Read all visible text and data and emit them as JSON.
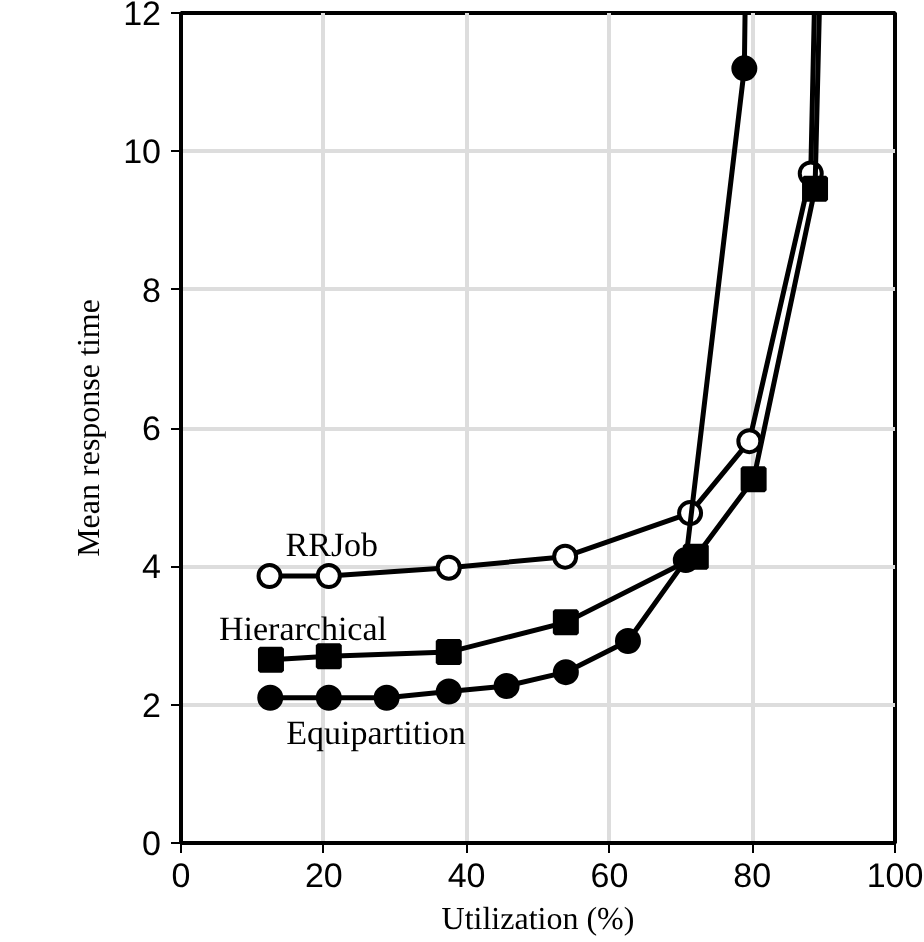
{
  "chart_data": {
    "type": "line",
    "xlabel": "Utilization (%)",
    "ylabel": "Mean response time",
    "xlim": [
      0,
      100
    ],
    "ylim": [
      0,
      12
    ],
    "xticks": [
      0,
      20,
      40,
      60,
      80,
      100
    ],
    "yticks": [
      0,
      2,
      4,
      6,
      8,
      10,
      12
    ],
    "grid": true,
    "line_style": "solid",
    "series": [
      {
        "name": "RRJob",
        "color": "#000000",
        "marker": "circle",
        "x": [
          12.4,
          20.7,
          37.5,
          53.8,
          71.3,
          79.6,
          88.2,
          88.7
        ],
        "values": [
          3.86,
          3.86,
          3.98,
          4.14,
          4.77,
          5.81,
          9.68,
          12
        ]
      },
      {
        "name": "Hierarchical",
        "color": "#000000",
        "marker": "square",
        "x": [
          12.6,
          20.7,
          37.5,
          53.9,
          72.1,
          80.2,
          88.8,
          89.4
        ],
        "values": [
          2.65,
          2.7,
          2.76,
          3.19,
          4.14,
          5.26,
          9.46,
          12
        ]
      },
      {
        "name": "Equipartition",
        "color": "#000000",
        "marker": "circle",
        "x": [
          12.5,
          20.7,
          28.8,
          37.5,
          45.6,
          53.9,
          62.6,
          70.7,
          78.9,
          79.0
        ],
        "values": [
          2.1,
          2.1,
          2.1,
          2.19,
          2.27,
          2.47,
          2.92,
          4.09,
          11.2,
          12
        ]
      }
    ]
  }
}
